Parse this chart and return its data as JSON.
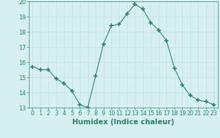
{
  "xlabel": "Humidex (Indice chaleur)",
  "ylabel": "",
  "x": [
    0,
    1,
    2,
    3,
    4,
    5,
    6,
    7,
    8,
    9,
    10,
    11,
    12,
    13,
    14,
    15,
    16,
    17,
    18,
    19,
    20,
    21,
    22,
    23
  ],
  "y": [
    15.7,
    15.5,
    15.5,
    14.9,
    14.6,
    14.1,
    13.2,
    13.0,
    15.1,
    17.2,
    18.4,
    18.5,
    19.2,
    19.8,
    19.5,
    18.6,
    18.1,
    17.4,
    15.6,
    14.5,
    13.8,
    13.5,
    13.4,
    13.2
  ],
  "line_color": "#2e7d6e",
  "marker": "+",
  "marker_size": 4,
  "marker_lw": 1.2,
  "bg_color": "#d6f0f0",
  "grid_color": "#c0dede",
  "xlim": [
    -0.5,
    23.5
  ],
  "ylim": [
    13,
    20
  ],
  "yticks": [
    13,
    14,
    15,
    16,
    17,
    18,
    19,
    20
  ],
  "xticks": [
    0,
    1,
    2,
    3,
    4,
    5,
    6,
    7,
    8,
    9,
    10,
    11,
    12,
    13,
    14,
    15,
    16,
    17,
    18,
    19,
    20,
    21,
    22,
    23
  ],
  "tick_color": "#2e7d6e",
  "label_color": "#2e7d6e",
  "xlabel_fontsize": 7.5,
  "tick_fontsize": 6.0,
  "line_width": 0.8
}
